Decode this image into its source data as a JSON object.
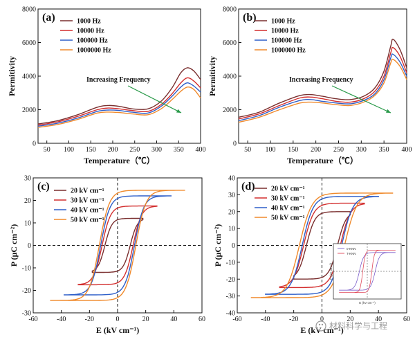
{
  "chart_data": [
    {
      "panel": "(a)",
      "type": "line",
      "xlabel": "Temperature（℃）",
      "ylabel": "Permitivity",
      "xlim": [
        30,
        400
      ],
      "ylim": [
        0,
        8000
      ],
      "xticks": [
        50,
        100,
        150,
        200,
        250,
        300,
        350,
        400
      ],
      "yticks": [
        0,
        2000,
        4000,
        6000,
        8000
      ],
      "annotation": "Increasing Frequency",
      "series": [
        {
          "name": "1000 Hz",
          "color": "#7a2f2f",
          "x": [
            30,
            75,
            120,
            165,
            190,
            215,
            245,
            280,
            310,
            335,
            355,
            370,
            385,
            400
          ],
          "y": [
            1150,
            1350,
            1700,
            2150,
            2250,
            2200,
            2050,
            2050,
            2500,
            3300,
            4200,
            4500,
            4300,
            3800
          ]
        },
        {
          "name": "10000 Hz",
          "color": "#d32f2f",
          "x": [
            30,
            75,
            120,
            165,
            190,
            215,
            245,
            280,
            310,
            335,
            355,
            370,
            385,
            400
          ],
          "y": [
            1080,
            1280,
            1600,
            2000,
            2100,
            2050,
            1950,
            1900,
            2300,
            2950,
            3600,
            3900,
            3700,
            3300
          ]
        },
        {
          "name": "100000 Hz",
          "color": "#2e5fc9",
          "x": [
            30,
            75,
            120,
            165,
            190,
            215,
            245,
            280,
            310,
            335,
            355,
            370,
            385,
            400
          ],
          "y": [
            1020,
            1200,
            1500,
            1900,
            1980,
            1950,
            1850,
            1800,
            2200,
            2800,
            3350,
            3600,
            3400,
            3050
          ]
        },
        {
          "name": "1000000 Hz",
          "color": "#f08a2c",
          "x": [
            30,
            75,
            120,
            165,
            190,
            215,
            245,
            280,
            310,
            335,
            355,
            370,
            385,
            400
          ],
          "y": [
            950,
            1120,
            1420,
            1800,
            1860,
            1830,
            1750,
            1700,
            2050,
            2600,
            3100,
            3350,
            3200,
            2700
          ]
        }
      ]
    },
    {
      "panel": "(b)",
      "type": "line",
      "xlabel": "Temperature（℃）",
      "ylabel": "Permitivity",
      "xlim": [
        30,
        400
      ],
      "ylim": [
        0,
        8000
      ],
      "xticks": [
        50,
        100,
        150,
        200,
        250,
        300,
        350,
        400
      ],
      "yticks": [
        0,
        2000,
        4000,
        6000,
        8000
      ],
      "annotation": "Increasing Frequency",
      "series": [
        {
          "name": "1000 Hz",
          "color": "#7a2f2f",
          "x": [
            30,
            75,
            120,
            165,
            190,
            215,
            245,
            275,
            305,
            330,
            350,
            365,
            370,
            385,
            400
          ],
          "y": [
            1550,
            1850,
            2400,
            2850,
            2900,
            2800,
            2650,
            2600,
            2800,
            3300,
            4300,
            5800,
            6200,
            5600,
            4500
          ]
        },
        {
          "name": "10000 Hz",
          "color": "#d32f2f",
          "x": [
            30,
            75,
            120,
            165,
            190,
            215,
            245,
            275,
            305,
            330,
            350,
            365,
            370,
            385,
            400
          ],
          "y": [
            1450,
            1750,
            2250,
            2700,
            2750,
            2650,
            2500,
            2450,
            2650,
            3100,
            4000,
            5400,
            5700,
            5200,
            4200
          ]
        },
        {
          "name": "100000 Hz",
          "color": "#2e5fc9",
          "x": [
            30,
            75,
            120,
            165,
            190,
            215,
            245,
            275,
            305,
            330,
            350,
            365,
            370,
            385,
            400
          ],
          "y": [
            1350,
            1650,
            2150,
            2550,
            2600,
            2500,
            2400,
            2350,
            2550,
            2950,
            3800,
            5100,
            5300,
            4850,
            4000
          ]
        },
        {
          "name": "1000000 Hz",
          "color": "#f08a2c",
          "x": [
            30,
            75,
            120,
            165,
            190,
            215,
            245,
            275,
            305,
            330,
            350,
            365,
            370,
            385,
            400
          ],
          "y": [
            1250,
            1550,
            2000,
            2400,
            2450,
            2400,
            2300,
            2250,
            2450,
            2850,
            3600,
            4800,
            5000,
            4600,
            3800
          ]
        }
      ]
    },
    {
      "panel": "(c)",
      "type": "line",
      "xlabel": "E (kV cm⁻¹)",
      "ylabel": "P (μC cm⁻²)",
      "xlim": [
        -60,
        60
      ],
      "ylim": [
        -30,
        30
      ],
      "xticks": [
        -60,
        -40,
        -20,
        0,
        20,
        40,
        60
      ],
      "yticks": [
        -30,
        -20,
        -10,
        0,
        10,
        20,
        30
      ],
      "series": [
        {
          "name": "20 kV cm⁻¹",
          "color": "#7a2f2f",
          "Emax": 18,
          "Pmax": 12,
          "Ec": 9,
          "Pr": 6.5
        },
        {
          "name": "30 kV cm⁻¹",
          "color": "#d32f2f",
          "Emax": 28,
          "Pmax": 17.5,
          "Ec": 11,
          "Pr": 11
        },
        {
          "name": "40 kV cm⁻¹",
          "color": "#2e5fc9",
          "Emax": 38,
          "Pmax": 22,
          "Ec": 12,
          "Pr": 14
        },
        {
          "name": "50 kV cm⁻¹",
          "color": "#f08a2c",
          "Emax": 48,
          "Pmax": 24.5,
          "Ec": 13,
          "Pr": 16
        }
      ]
    },
    {
      "panel": "(d)",
      "type": "line",
      "xlabel": "E (kV cm⁻¹)",
      "ylabel": "P (μC cm⁻²)",
      "xlim": [
        -60,
        60
      ],
      "ylim": [
        -40,
        40
      ],
      "xticks": [
        -60,
        -40,
        -20,
        0,
        20,
        40,
        60
      ],
      "yticks": [
        -40,
        -30,
        -20,
        -10,
        0,
        10,
        20,
        30,
        40
      ],
      "series": [
        {
          "name": "20 kV cm⁻¹",
          "color": "#7a2f2f",
          "Emax": 20,
          "Pmax": 20,
          "Ec": 11,
          "Pr": 14
        },
        {
          "name": "30 kV cm⁻¹",
          "color": "#d32f2f",
          "Emax": 30,
          "Pmax": 25,
          "Ec": 13,
          "Pr": 18
        },
        {
          "name": "40 kV cm⁻¹",
          "color": "#2e5fc9",
          "Emax": 40,
          "Pmax": 29,
          "Ec": 14,
          "Pr": 21
        },
        {
          "name": "50 kV cm⁻¹",
          "color": "#f08a2c",
          "Emax": 50,
          "Pmax": 31,
          "Ec": 16,
          "Pr": 23
        }
      ],
      "inset": {
        "legend": [
          "0-KNN",
          "T-KNN"
        ],
        "xlabel": "E (kV cm⁻¹)",
        "ylabel": "P (μC cm⁻²)",
        "xticks": [
          -60,
          -40,
          -20,
          0,
          20,
          40,
          60
        ],
        "yticks": [
          -30,
          -20,
          -10,
          0,
          10,
          20,
          30
        ]
      }
    }
  ],
  "watermark": "材料科学与工程"
}
